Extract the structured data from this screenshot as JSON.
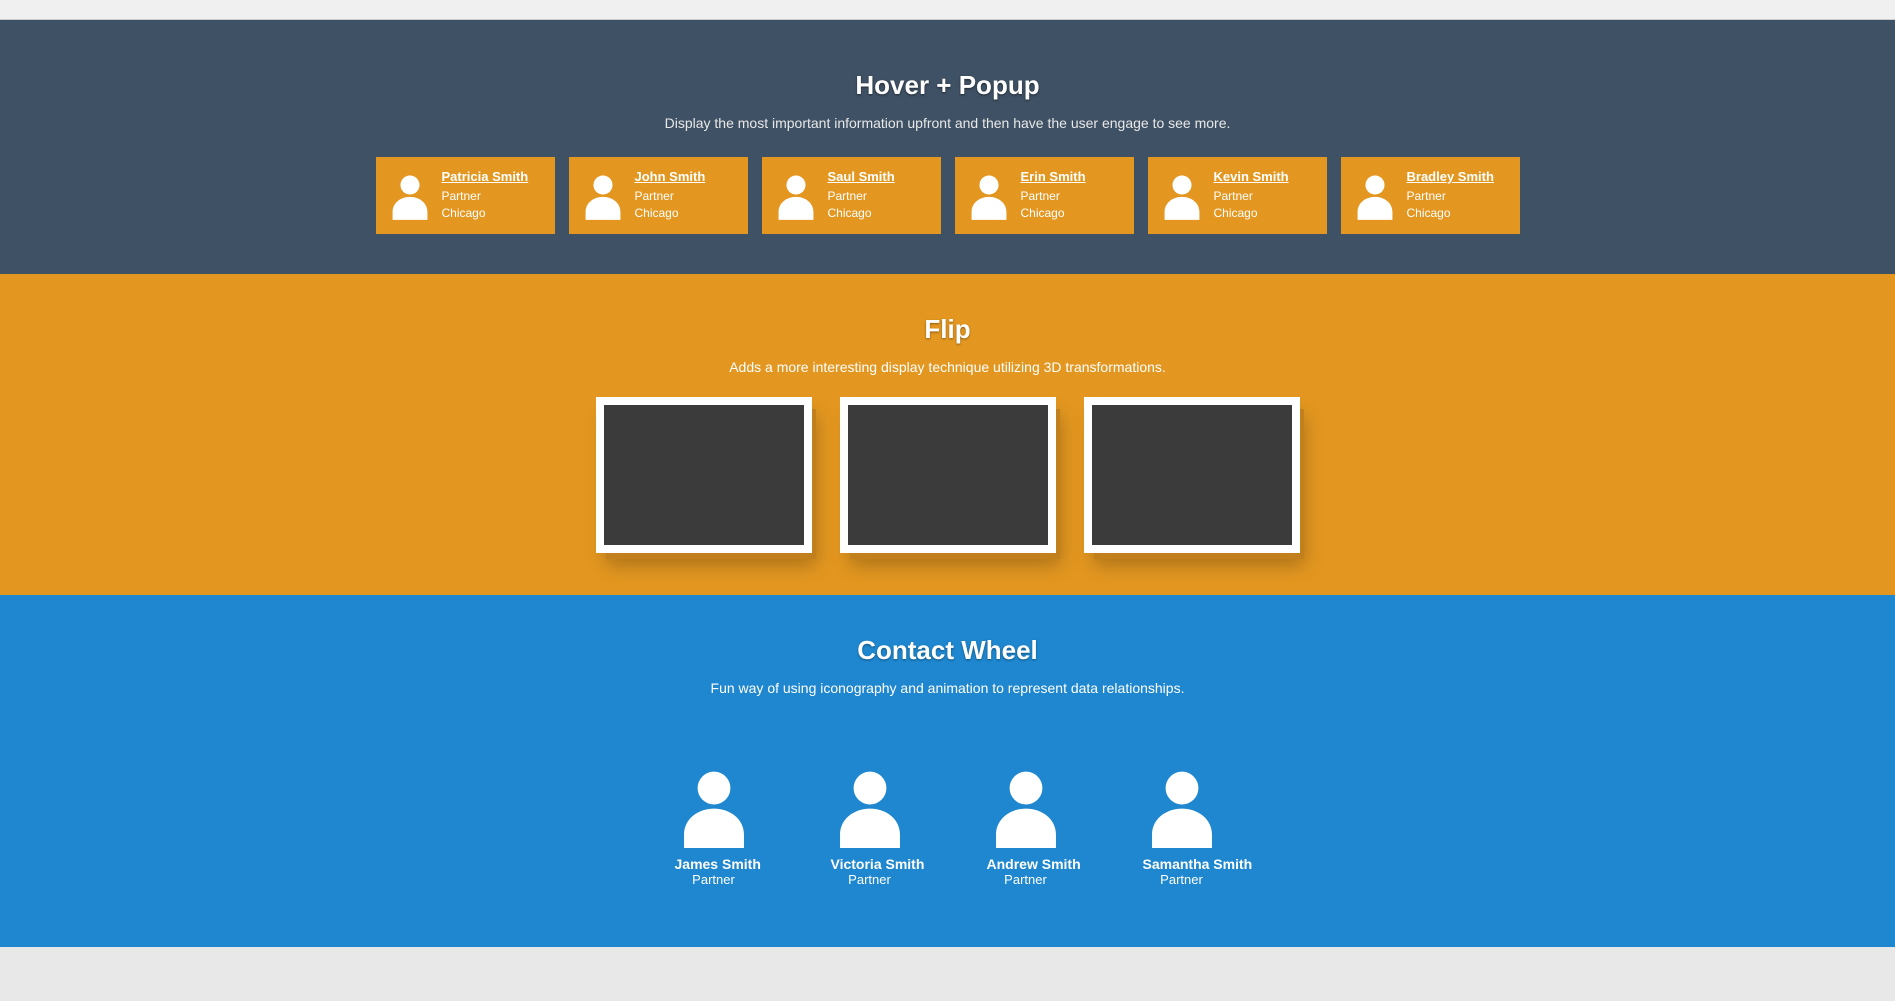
{
  "colors": {
    "section_hover_bg": "#3f5164",
    "section_flip_bg": "#e39720",
    "section_wheel_bg": "#1e87cf",
    "card_bg": "#e39720",
    "flip_paper": "#ffffff",
    "flip_inner": "#3b3b3b",
    "text": "#ffffff"
  },
  "hover": {
    "title": "Hover + Popup",
    "subtitle": "Display the most important information upfront and then have the user engage to see more.",
    "cards": [
      {
        "name": "Patricia Smith",
        "role": "Partner",
        "location": "Chicago"
      },
      {
        "name": "John Smith",
        "role": "Partner",
        "location": "Chicago"
      },
      {
        "name": "Saul Smith",
        "role": "Partner",
        "location": "Chicago"
      },
      {
        "name": "Erin Smith",
        "role": "Partner",
        "location": "Chicago"
      },
      {
        "name": "Kevin Smith",
        "role": "Partner",
        "location": "Chicago"
      },
      {
        "name": "Bradley Smith",
        "role": "Partner",
        "location": "Chicago"
      }
    ]
  },
  "flip": {
    "title": "Flip",
    "subtitle": "Adds a more interesting display technique utilizing 3D transformations.",
    "card_count": 3
  },
  "wheel": {
    "title": "Contact Wheel",
    "subtitle": "Fun way of using iconography and animation to represent data relationships.",
    "people": [
      {
        "name": "James Smith",
        "role": "Partner"
      },
      {
        "name": "Victoria Smith",
        "role": "Partner"
      },
      {
        "name": "Andrew Smith",
        "role": "Partner"
      },
      {
        "name": "Samantha Smith",
        "role": "Partner"
      }
    ]
  }
}
